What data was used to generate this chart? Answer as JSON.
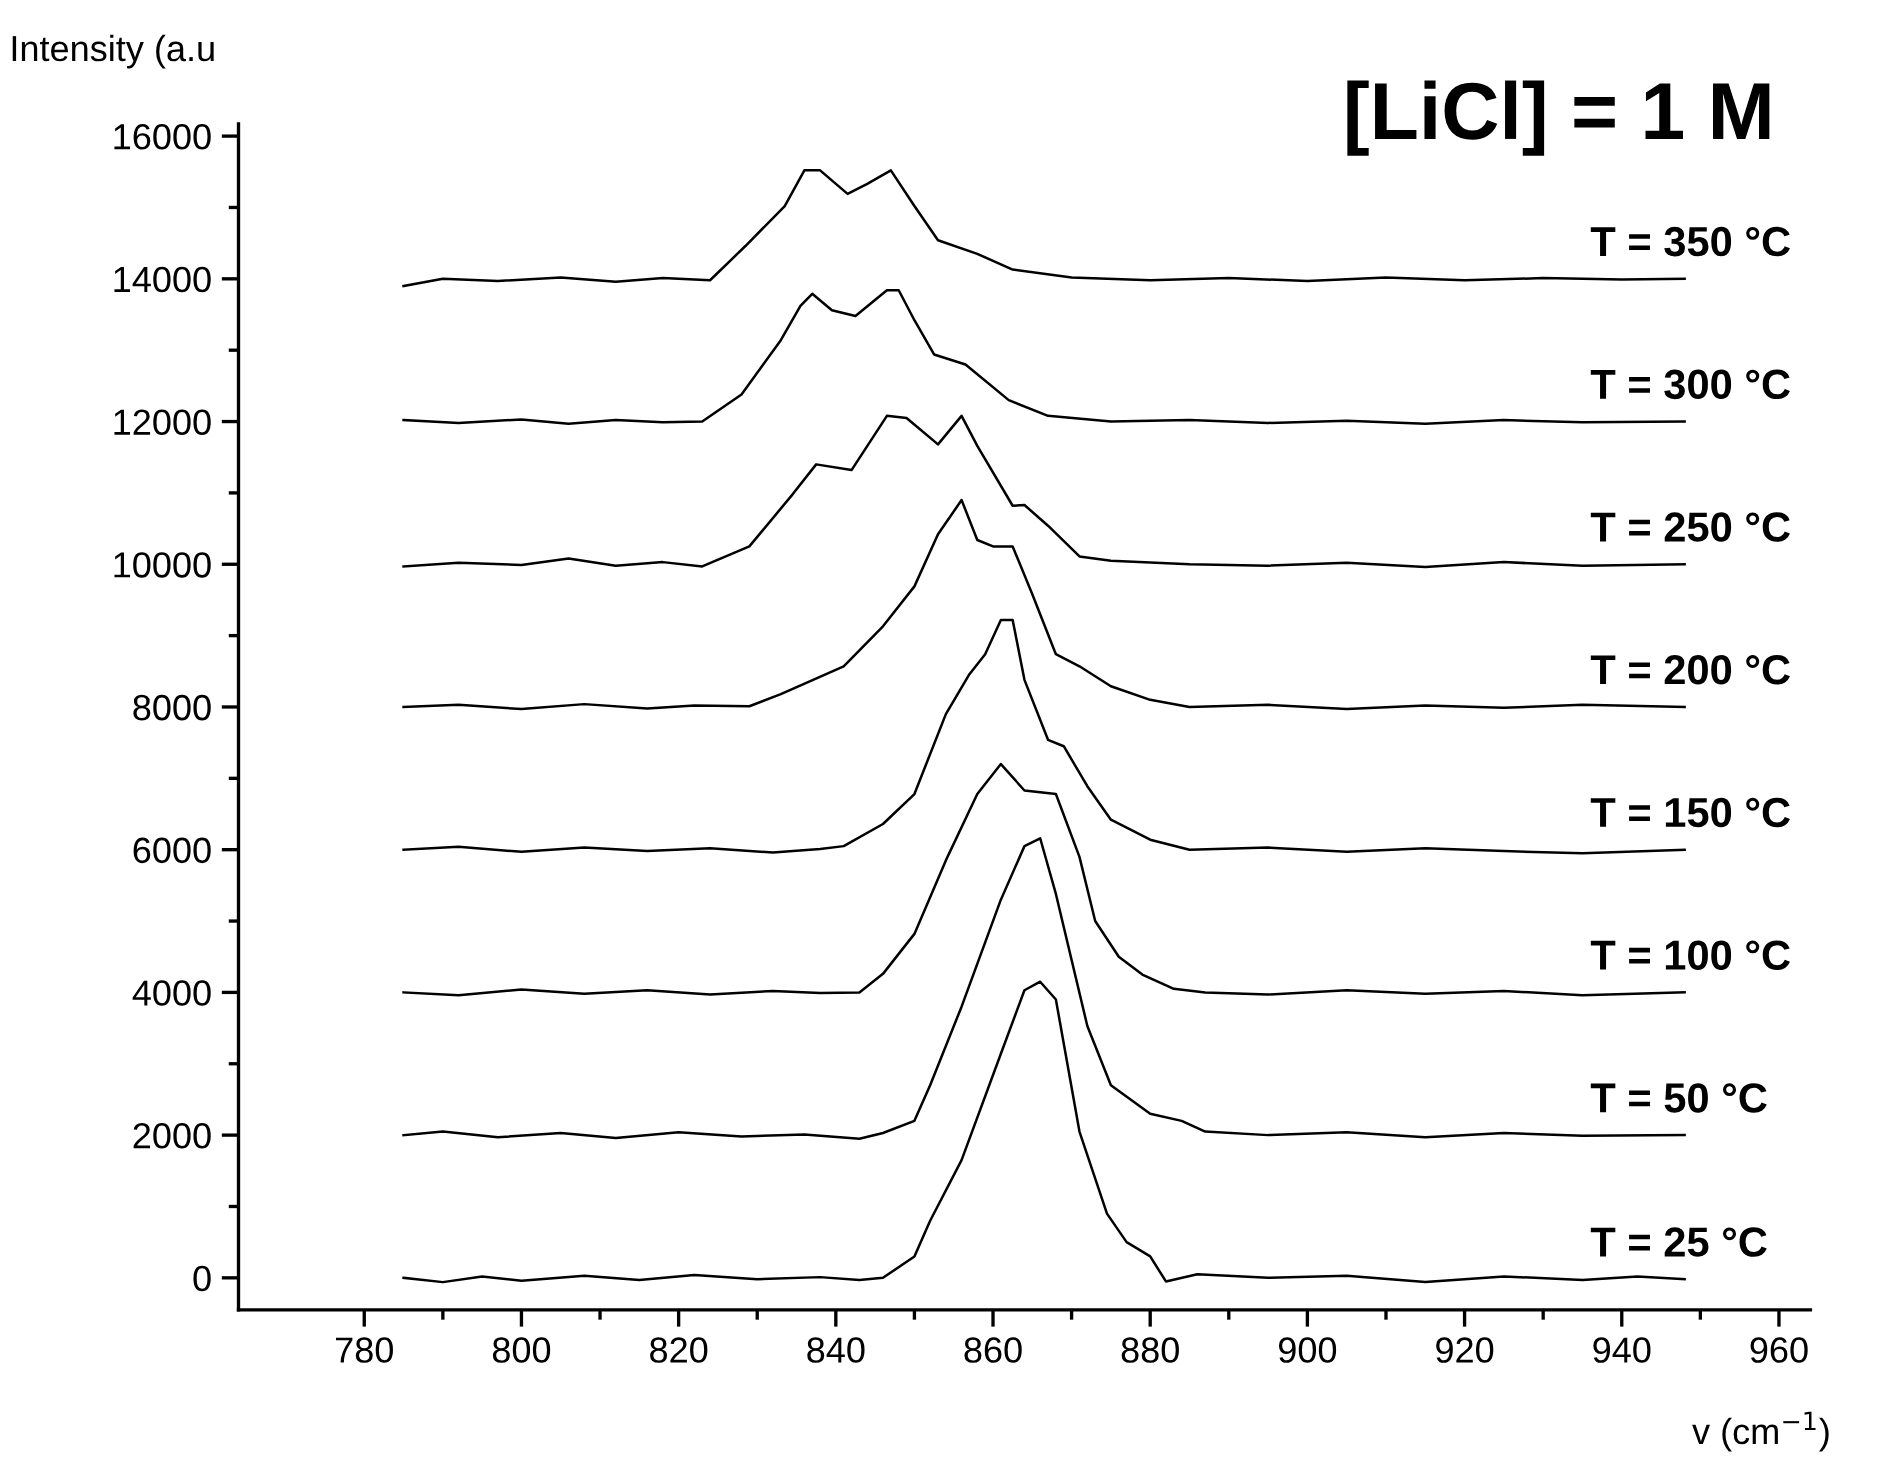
{
  "chart_data": {
    "type": "line",
    "title": "[LiCl] = 1 M",
    "xlabel": "v (cm$^{−1}$)",
    "ylabel": "Intensity (a.u",
    "xlim": [
      764,
      964
    ],
    "ylim": [
      -450,
      16170
    ],
    "xticks": [
      780,
      800,
      820,
      840,
      860,
      880,
      900,
      920,
      940,
      960
    ],
    "yticks": [
      0,
      2000,
      4000,
      6000,
      8000,
      10000,
      12000,
      14000,
      16000
    ],
    "grid": false,
    "legend": false,
    "series": [
      {
        "name": "T = 25 °C",
        "color": "#000000",
        "x": [
          785,
          790,
          795,
          800,
          808,
          815,
          822,
          830,
          838,
          843,
          846,
          850,
          852,
          856,
          861,
          864,
          866,
          868,
          871,
          874.5,
          877,
          880,
          882,
          886,
          895,
          905,
          915,
          925,
          935,
          942,
          948
        ],
        "values": [
          0,
          -60,
          20,
          -40,
          30,
          -30,
          40,
          -20,
          10,
          -30,
          0,
          300,
          800,
          1650,
          3140,
          4030,
          4150,
          3900,
          2050,
          900,
          500,
          300,
          -50,
          50,
          0,
          30,
          -60,
          20,
          -30,
          20,
          -20
        ]
      },
      {
        "name": "T = 50 °C",
        "color": "#000000",
        "x": [
          785,
          790,
          797,
          805,
          812,
          820,
          828,
          836,
          843,
          846,
          850,
          852,
          856,
          861,
          864,
          866,
          868,
          872,
          875,
          880,
          884,
          887,
          895,
          905,
          915,
          925,
          935,
          948
        ],
        "values": [
          2000,
          2050,
          1970,
          2030,
          1960,
          2040,
          1980,
          2010,
          1950,
          2030,
          2200,
          2700,
          3800,
          5300,
          6050,
          6160,
          5380,
          3530,
          2700,
          2300,
          2200,
          2050,
          2000,
          2040,
          1970,
          2030,
          1990,
          2000
        ]
      },
      {
        "name": "T = 100 °C",
        "color": "#000000",
        "x": [
          785,
          792,
          800,
          808,
          816,
          824,
          832,
          838,
          843,
          846,
          850,
          854,
          858,
          861,
          864,
          868,
          871,
          873,
          876,
          879,
          883,
          887,
          895,
          905,
          915,
          925,
          935,
          948
        ],
        "values": [
          4000,
          3960,
          4040,
          3980,
          4030,
          3970,
          4020,
          3990,
          4000,
          4260,
          4820,
          5850,
          6780,
          7200,
          6830,
          6780,
          5900,
          5000,
          4500,
          4250,
          4050,
          4000,
          3970,
          4030,
          3980,
          4020,
          3960,
          4000
        ]
      },
      {
        "name": "T = 150 °C",
        "color": "#000000",
        "x": [
          785,
          792,
          800,
          808,
          816,
          824,
          832,
          838,
          841,
          846,
          850,
          854,
          857,
          859,
          861,
          862.5,
          864,
          867,
          869,
          872,
          875,
          880,
          885,
          895,
          905,
          915,
          925,
          935,
          948
        ],
        "values": [
          6000,
          6040,
          5970,
          6030,
          5980,
          6020,
          5960,
          6010,
          6050,
          6360,
          6780,
          7900,
          8460,
          8740,
          9220,
          9220,
          8380,
          7540,
          7450,
          6890,
          6420,
          6140,
          6000,
          6030,
          5970,
          6020,
          5980,
          5950,
          6000
        ]
      },
      {
        "name": "T = 200 °C",
        "color": "#000000",
        "x": [
          785,
          792,
          800,
          808,
          816,
          822,
          829,
          833,
          841,
          846,
          850,
          853,
          856,
          858,
          860,
          862.5,
          865,
          868,
          871,
          875,
          880,
          885,
          895,
          905,
          915,
          925,
          935,
          948
        ],
        "values": [
          8000,
          8030,
          7970,
          8040,
          7980,
          8020,
          8010,
          8180,
          8570,
          9130,
          9690,
          10420,
          10900,
          10340,
          10250,
          10250,
          9580,
          8740,
          8570,
          8290,
          8100,
          8000,
          8030,
          7970,
          8020,
          7990,
          8030,
          8000
        ]
      },
      {
        "name": "T = 250 °C",
        "color": "#000000",
        "x": [
          785,
          792,
          800,
          806,
          812,
          818,
          823,
          829,
          834.5,
          837.5,
          842,
          846.5,
          849,
          853,
          856,
          858,
          862.5,
          864,
          867,
          871,
          875,
          885,
          895,
          905,
          915,
          925,
          935,
          948
        ],
        "values": [
          9970,
          10020,
          9990,
          10080,
          9980,
          10030,
          9970,
          10250,
          10980,
          11400,
          11320,
          12080,
          12050,
          11680,
          12080,
          11660,
          10820,
          10830,
          10540,
          10110,
          10050,
          10000,
          9980,
          10020,
          9960,
          10030,
          9980,
          10000
        ]
      },
      {
        "name": "T = 300 °C",
        "color": "#000000",
        "x": [
          785,
          792,
          800,
          806,
          812,
          818,
          823,
          828,
          833,
          835.5,
          837,
          839.5,
          842.5,
          846.5,
          848,
          850,
          852.5,
          856.5,
          862,
          867,
          875,
          885,
          895,
          905,
          915,
          925,
          935,
          948
        ],
        "values": [
          12020,
          11980,
          12030,
          11970,
          12020,
          11990,
          12000,
          12380,
          13140,
          13620,
          13790,
          13560,
          13480,
          13840,
          13840,
          13420,
          12940,
          12800,
          12300,
          12080,
          12000,
          12020,
          11980,
          12010,
          11970,
          12020,
          11990,
          12000
        ]
      },
      {
        "name": "T = 350 °C",
        "color": "#000000",
        "x": [
          785,
          790,
          797,
          805,
          812,
          818,
          824,
          828.5,
          833.5,
          836,
          838,
          841.5,
          844,
          847,
          850,
          853,
          858,
          862.5,
          870,
          880,
          890,
          900,
          910,
          920,
          930,
          940,
          948
        ],
        "values": [
          13900,
          14000,
          13970,
          14020,
          13960,
          14010,
          13980,
          14460,
          15020,
          15520,
          15520,
          15190,
          15330,
          15520,
          15020,
          14540,
          14350,
          14130,
          14020,
          13980,
          14010,
          13970,
          14020,
          13980,
          14010,
          13990,
          14000
        ]
      }
    ]
  }
}
